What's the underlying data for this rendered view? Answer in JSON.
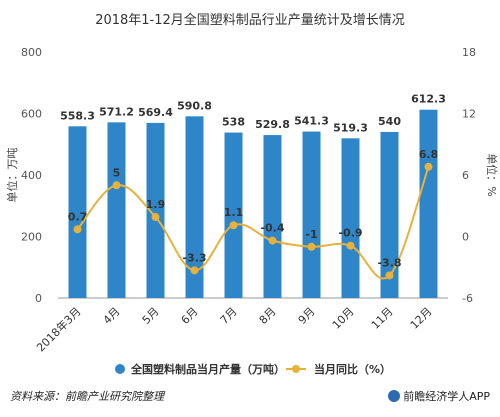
{
  "colors": {
    "bar": "#2e86c8",
    "line": "#e8b13c",
    "axis_text": "#555555",
    "grid": "#e6e6e6"
  },
  "chart_data": {
    "type": "bar",
    "title": "2018年1-12月全国塑料制品行业产量统计及增长情况",
    "categories": [
      "2018年3月",
      "4月",
      "5月",
      "6月",
      "7月",
      "8月",
      "9月",
      "10月",
      "11月",
      "12月"
    ],
    "series": [
      {
        "name": "全国塑料制品当月产量（万吨）",
        "type": "bar",
        "axis": "left",
        "values": [
          558.3,
          571.2,
          569.4,
          590.8,
          538,
          529.8,
          541.3,
          519.3,
          540,
          612.3
        ]
      },
      {
        "name": "当月同比（%）",
        "type": "line",
        "axis": "right",
        "values": [
          0.7,
          5,
          1.9,
          -3.3,
          1.1,
          -0.4,
          -1,
          -0.9,
          -3.8,
          6.8
        ]
      }
    ],
    "ylabel": "单位：万吨",
    "y2label": "单位：%",
    "ylim": [
      0,
      800
    ],
    "y2lim": [
      -6,
      18
    ],
    "yticks": [
      0,
      200,
      400,
      600,
      800
    ],
    "y2ticks": [
      -6,
      0,
      6,
      12,
      18
    ],
    "grid": false,
    "legend": "bottom"
  },
  "footer": {
    "source": "资料来源：前瞻产业研究院整理",
    "brand": "前瞻经济学人APP"
  }
}
